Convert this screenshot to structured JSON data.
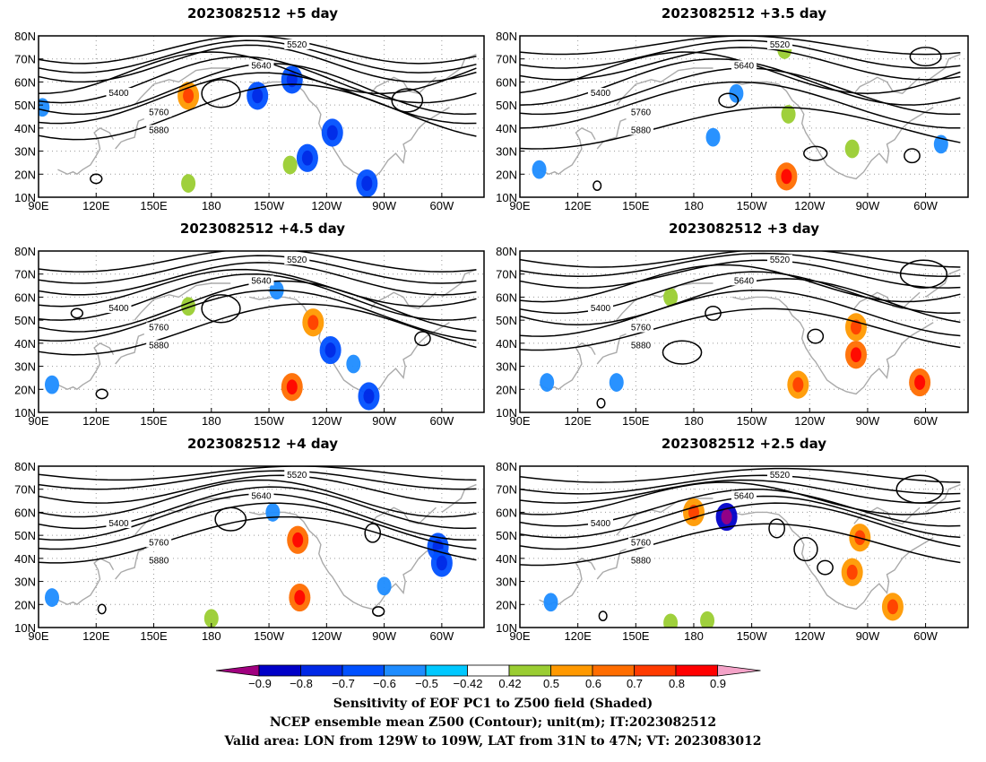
{
  "chart_data": [
    {
      "type": "heatmap",
      "title": "2023082512 +5 day",
      "x_ticks": [
        "90E",
        "120E",
        "150E",
        "180",
        "150W",
        "120W",
        "90W",
        "60W"
      ],
      "y_ticks": [
        "10N",
        "20N",
        "30N",
        "40N",
        "50N",
        "60N",
        "70N",
        "80N"
      ],
      "lon_range": [
        90,
        322
      ],
      "lat_range": [
        10,
        80
      ],
      "contour_levels": [
        "5400",
        "5520",
        "5640",
        "5760",
        "5880"
      ],
      "shaded": [
        {
          "lon": 243,
          "lat": 38,
          "value": -0.6
        },
        {
          "lon": 230,
          "lat": 27,
          "value": -0.6
        },
        {
          "lon": 222,
          "lat": 61,
          "value": -0.6
        },
        {
          "lon": 204,
          "lat": 54,
          "value": -0.6
        },
        {
          "lon": 261,
          "lat": 16,
          "value": -0.6
        },
        {
          "lon": 168,
          "lat": 54,
          "value": 0.6
        },
        {
          "lon": 168,
          "lat": 16,
          "value": 0.5
        },
        {
          "lon": 221,
          "lat": 24,
          "value": 0.5
        },
        {
          "lon": 92,
          "lat": 49,
          "value": -0.5
        }
      ]
    },
    {
      "type": "heatmap",
      "title": "2023082512 +3.5 day",
      "x_ticks": [
        "90E",
        "120E",
        "150E",
        "180",
        "150W",
        "120W",
        "90W",
        "60W"
      ],
      "y_ticks": [
        "10N",
        "20N",
        "30N",
        "40N",
        "50N",
        "60N",
        "70N",
        "80N"
      ],
      "lon_range": [
        90,
        322
      ],
      "lat_range": [
        10,
        80
      ],
      "contour_levels": [
        "5400",
        "5520",
        "5640",
        "5760",
        "5880"
      ],
      "shaded": [
        {
          "lon": 100,
          "lat": 22,
          "value": -0.5
        },
        {
          "lon": 228,
          "lat": 19,
          "value": 0.7
        },
        {
          "lon": 262,
          "lat": 31,
          "value": 0.5
        },
        {
          "lon": 229,
          "lat": 46,
          "value": 0.5
        },
        {
          "lon": 202,
          "lat": 55,
          "value": -0.5
        },
        {
          "lon": 308,
          "lat": 33,
          "value": -0.5
        },
        {
          "lon": 227,
          "lat": 74,
          "value": 0.5
        },
        {
          "lon": 190,
          "lat": 36,
          "value": -0.5
        }
      ]
    },
    {
      "type": "heatmap",
      "title": "2023082512 +4.5 day",
      "x_ticks": [
        "90E",
        "120E",
        "150E",
        "180",
        "150W",
        "120W",
        "90W",
        "60W"
      ],
      "y_ticks": [
        "10N",
        "20N",
        "30N",
        "40N",
        "50N",
        "60N",
        "70N",
        "80N"
      ],
      "lon_range": [
        90,
        322
      ],
      "lat_range": [
        10,
        80
      ],
      "contour_levels": [
        "5400",
        "5520",
        "5640",
        "5760",
        "5880"
      ],
      "shaded": [
        {
          "lon": 242,
          "lat": 37,
          "value": -0.6
        },
        {
          "lon": 222,
          "lat": 21,
          "value": 0.7
        },
        {
          "lon": 233,
          "lat": 49,
          "value": 0.6
        },
        {
          "lon": 97,
          "lat": 22,
          "value": -0.5
        },
        {
          "lon": 214,
          "lat": 63,
          "value": -0.5
        },
        {
          "lon": 168,
          "lat": 56,
          "value": 0.5
        },
        {
          "lon": 262,
          "lat": 17,
          "value": -0.6
        },
        {
          "lon": 254,
          "lat": 31,
          "value": -0.5
        }
      ]
    },
    {
      "type": "heatmap",
      "title": "2023082512 +3 day",
      "x_ticks": [
        "90E",
        "120E",
        "150E",
        "180",
        "150W",
        "120W",
        "90W",
        "60W"
      ],
      "y_ticks": [
        "10N",
        "20N",
        "30N",
        "40N",
        "50N",
        "60N",
        "70N",
        "80N"
      ],
      "lon_range": [
        90,
        322
      ],
      "lat_range": [
        10,
        80
      ],
      "contour_levels": [
        "5400",
        "5520",
        "5640",
        "5760",
        "5880"
      ],
      "shaded": [
        {
          "lon": 264,
          "lat": 35,
          "value": 0.7
        },
        {
          "lon": 234,
          "lat": 22,
          "value": 0.6
        },
        {
          "lon": 264,
          "lat": 47,
          "value": 0.6
        },
        {
          "lon": 297,
          "lat": 23,
          "value": 0.7
        },
        {
          "lon": 104,
          "lat": 23,
          "value": -0.5
        },
        {
          "lon": 140,
          "lat": 23,
          "value": -0.5
        },
        {
          "lon": 168,
          "lat": 60,
          "value": 0.5
        }
      ]
    },
    {
      "type": "heatmap",
      "title": "2023082512 +4 day",
      "x_ticks": [
        "90E",
        "120E",
        "150E",
        "180",
        "150W",
        "120W",
        "90W",
        "60W"
      ],
      "y_ticks": [
        "10N",
        "20N",
        "30N",
        "40N",
        "50N",
        "60N",
        "70N",
        "80N"
      ],
      "lon_range": [
        90,
        322
      ],
      "lat_range": [
        10,
        80
      ],
      "contour_levels": [
        "5400",
        "5520",
        "5640",
        "5760",
        "5880"
      ],
      "shaded": [
        {
          "lon": 226,
          "lat": 23,
          "value": 0.7
        },
        {
          "lon": 225,
          "lat": 48,
          "value": 0.7
        },
        {
          "lon": 298,
          "lat": 45,
          "value": -0.6
        },
        {
          "lon": 300,
          "lat": 38,
          "value": -0.6
        },
        {
          "lon": 97,
          "lat": 23,
          "value": -0.5
        },
        {
          "lon": 180,
          "lat": 14,
          "value": 0.5
        },
        {
          "lon": 212,
          "lat": 60,
          "value": -0.5
        },
        {
          "lon": 270,
          "lat": 28,
          "value": -0.5
        }
      ]
    },
    {
      "type": "heatmap",
      "title": "2023082512 +2.5 day",
      "x_ticks": [
        "90E",
        "120E",
        "150E",
        "180",
        "150W",
        "120W",
        "90W",
        "60W"
      ],
      "y_ticks": [
        "10N",
        "20N",
        "30N",
        "40N",
        "50N",
        "60N",
        "70N",
        "80N"
      ],
      "lon_range": [
        90,
        322
      ],
      "lat_range": [
        10,
        80
      ],
      "contour_levels": [
        "5400",
        "5520",
        "5640",
        "5760",
        "5880"
      ],
      "shaded": [
        {
          "lon": 197,
          "lat": 58,
          "value": -0.8
        },
        {
          "lon": 180,
          "lat": 60,
          "value": 0.6
        },
        {
          "lon": 106,
          "lat": 21,
          "value": -0.5
        },
        {
          "lon": 168,
          "lat": 12,
          "value": 0.5
        },
        {
          "lon": 187,
          "lat": 13,
          "value": 0.5
        },
        {
          "lon": 262,
          "lat": 34,
          "value": 0.6
        },
        {
          "lon": 283,
          "lat": 19,
          "value": 0.6
        },
        {
          "lon": 266,
          "lat": 49,
          "value": 0.6
        }
      ]
    }
  ],
  "colorbar": {
    "tick_labels": [
      "−0.9",
      "−0.8",
      "−0.7",
      "−0.6",
      "−0.5",
      "−0.42",
      "0.42",
      "0.5",
      "0.6",
      "0.7",
      "0.8",
      "0.9"
    ],
    "colors": [
      "#a0007f",
      "#0000c8",
      "#0028e6",
      "#0050ff",
      "#1e8cff",
      "#00c8ff",
      "#ffffff",
      "#9acd32",
      "#ff9900",
      "#ff6d00",
      "#ff3b00",
      "#ff0000",
      "#f4a3c8"
    ]
  },
  "caption": {
    "line1": "Sensitivity of EOF PC1 to Z500 field (Shaded)",
    "line2": "NCEP ensemble mean Z500 (Contour); unit(m); IT:2023082512",
    "line3": "Valid area: LON from 129W to 109W, LAT from 31N to 47N; VT: 2023083012"
  }
}
